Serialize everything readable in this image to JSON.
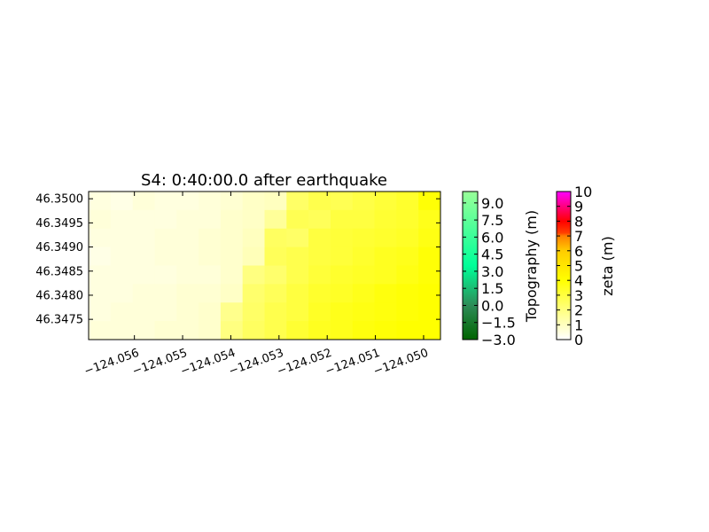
{
  "chart_data": {
    "type": "heatmap",
    "title": "S4: 0:40:00.0 after earthquake",
    "xlabel": "",
    "ylabel": "",
    "xlim": [
      -124.05695,
      -124.04965
    ],
    "ylim": [
      46.34708,
      46.35015
    ],
    "x_ticks": [
      -124.056,
      -124.055,
      -124.054,
      -124.053,
      -124.052,
      -124.051,
      -124.05
    ],
    "x_tick_labels": [
      "−124.056",
      "−124.055",
      "−124.054",
      "−124.053",
      "−124.052",
      "−124.051",
      "−124.050"
    ],
    "y_ticks": [
      46.3475,
      46.348,
      46.3485,
      46.349,
      46.3495,
      46.35
    ],
    "y_tick_labels": [
      "46.3475",
      "46.3480",
      "46.3485",
      "46.3490",
      "46.3495",
      "46.3500"
    ],
    "grid": false,
    "zeta_field": {
      "description_of_values": "water surface elevation zeta (m) over the map domain",
      "rows_from_top": [
        [
          0.5,
          0.4,
          0.6,
          0.5,
          0.5,
          0.6,
          0.7,
          0.9,
          1.0,
          2.4,
          2.8,
          2.7,
          2.9,
          3.1,
          3.3,
          3.9
        ],
        [
          0.6,
          0.5,
          0.5,
          0.5,
          0.6,
          0.6,
          0.8,
          0.9,
          1.6,
          2.7,
          2.6,
          3.0,
          3.0,
          3.2,
          3.3,
          3.6
        ],
        [
          0.5,
          0.5,
          0.5,
          0.6,
          0.6,
          0.7,
          0.8,
          1.0,
          2.5,
          2.4,
          3.0,
          3.1,
          3.2,
          3.3,
          3.4,
          3.7
        ],
        [
          0.4,
          0.5,
          0.5,
          0.6,
          0.6,
          0.7,
          0.8,
          1.1,
          2.6,
          2.8,
          3.0,
          3.1,
          3.3,
          3.5,
          3.6,
          3.9
        ],
        [
          0.5,
          0.5,
          0.5,
          0.5,
          0.6,
          0.6,
          0.8,
          2.0,
          2.3,
          2.8,
          3.1,
          3.3,
          3.4,
          3.5,
          3.7,
          3.9
        ],
        [
          0.5,
          0.5,
          0.6,
          0.6,
          0.7,
          0.7,
          0.9,
          2.3,
          2.6,
          3.0,
          3.3,
          3.4,
          3.6,
          3.8,
          3.9,
          4.0
        ],
        [
          0.5,
          0.6,
          0.6,
          0.6,
          0.7,
          0.8,
          1.8,
          2.4,
          2.8,
          3.0,
          3.4,
          3.6,
          3.7,
          3.8,
          3.9,
          4.0
        ],
        [
          0.6,
          0.6,
          0.6,
          0.7,
          0.7,
          0.8,
          2.0,
          2.5,
          2.8,
          3.2,
          3.5,
          3.6,
          3.8,
          3.9,
          4.0,
          4.0
        ]
      ]
    },
    "colorbars": [
      {
        "label": "Topography (m)",
        "ticks": [
          -3.0,
          -1.5,
          0.0,
          1.5,
          3.0,
          4.5,
          6.0,
          7.5,
          9.0
        ],
        "tick_labels": [
          "−3.0",
          "−1.5",
          "0.0",
          "1.5",
          "3.0",
          "4.5",
          "6.0",
          "7.5",
          "9.0"
        ],
        "range": [
          -3.0,
          10.0
        ],
        "colors": [
          "#006400",
          "#00ff99",
          "#99ff99"
        ]
      },
      {
        "label": "zeta (m)",
        "ticks": [
          0,
          1,
          2,
          3,
          4,
          5,
          6,
          7,
          8,
          9,
          10
        ],
        "tick_labels": [
          "0",
          "1",
          "2",
          "3",
          "4",
          "5",
          "6",
          "7",
          "8",
          "9",
          "10"
        ],
        "range": [
          0,
          10
        ],
        "colors": [
          "#ffffff",
          "#ffff00",
          "#ff7f00",
          "#ff0000",
          "#ff00ff"
        ]
      }
    ]
  }
}
